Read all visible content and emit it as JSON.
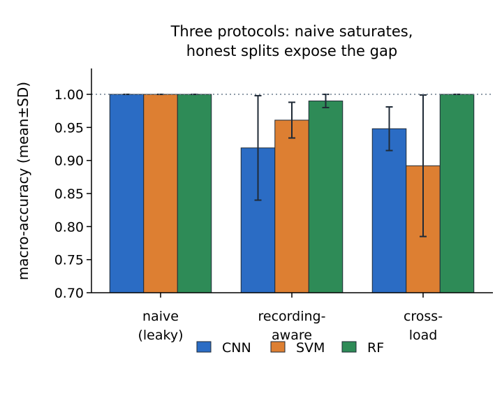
{
  "chart_data": {
    "type": "bar",
    "title_lines": [
      "Three protocols: naive saturates,",
      "honest splits expose the gap"
    ],
    "ylabel": "macro-accuracy (mean±SD)",
    "xlabel": "",
    "ylim": [
      0.7,
      1.04
    ],
    "yticks": [
      "0.70",
      "0.75",
      "0.80",
      "0.85",
      "0.90",
      "0.95",
      "1.00"
    ],
    "reference_line": 1.0,
    "categories": [
      {
        "lines": [
          "naive",
          "(leaky)"
        ]
      },
      {
        "lines": [
          "recording-",
          "aware"
        ]
      },
      {
        "lines": [
          "cross-",
          "load"
        ]
      }
    ],
    "series": [
      {
        "name": "CNN",
        "color": "#2b6cc4",
        "values": [
          1.0,
          0.919,
          0.948
        ],
        "sd": [
          0.0,
          0.079,
          0.033
        ]
      },
      {
        "name": "SVM",
        "color": "#dd7f32",
        "values": [
          1.0,
          0.961,
          0.892
        ],
        "sd": [
          0.0,
          0.027,
          0.107
        ]
      },
      {
        "name": "RF",
        "color": "#2e8b57",
        "values": [
          1.0,
          0.99,
          1.0
        ],
        "sd": [
          0.0,
          0.01,
          0.0
        ]
      }
    ],
    "grid": false,
    "legend_position": "bottom-center"
  }
}
